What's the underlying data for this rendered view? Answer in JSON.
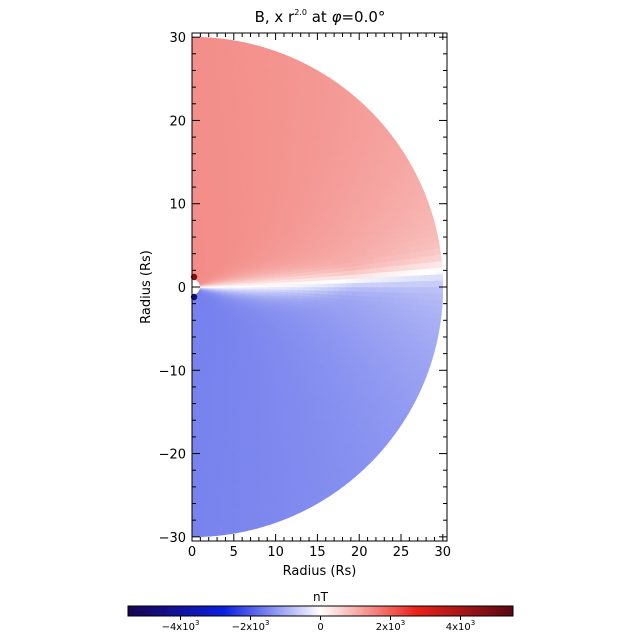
{
  "chart_data": {
    "type": "heatmap",
    "title": "B, x r^2.0 at φ=0.0°",
    "title_parts": {
      "base": "B, x r",
      "exponent": "2.0",
      "suffix": " at ",
      "phi": "φ",
      "value": "=0.0°"
    },
    "xlabel": "Radius (Rs)",
    "ylabel": "Radius (Rs)",
    "xlim": [
      0,
      30.5
    ],
    "ylim": [
      -30.5,
      30.5
    ],
    "x_ticks": [
      0,
      5,
      10,
      15,
      20,
      25,
      30
    ],
    "y_ticks": [
      -30,
      -20,
      -10,
      0,
      10,
      20,
      30
    ],
    "x_tick_labels": [
      "0",
      "5",
      "10",
      "15",
      "20",
      "25",
      "30"
    ],
    "y_tick_labels": [
      "−30",
      "−20",
      "−10",
      "0",
      "10",
      "20",
      "30"
    ],
    "domain": {
      "shape": "half-disk",
      "r_max": 30,
      "r_min": 1
    },
    "field": {
      "description_values": "signed B scaled by r^2, positive north of the current sheet, negative south",
      "north_level": 0.26,
      "south_level": -0.28,
      "sheet_tilt_deg": 4,
      "sheet_width_deg_inner": 14,
      "sheet_width_deg_outer": 3,
      "near_sun_peak": 1.0
    },
    "colorbar": {
      "label": "nT",
      "range": [
        -5.5,
        5.5
      ],
      "tick_values": [
        -4,
        -2,
        0,
        2,
        4
      ],
      "tick_labels": [
        "−4x10",
        "−2x10",
        "0",
        "2x10",
        "4x10"
      ],
      "tick_exponent": "3",
      "colors": [
        "#1a0450",
        "#0b1fe0",
        "#ffffff",
        "#e8231a",
        "#5a0615"
      ]
    }
  }
}
